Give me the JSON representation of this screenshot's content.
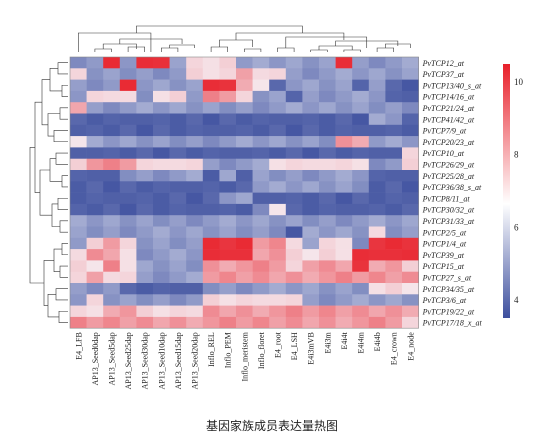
{
  "caption": "基因家族成员表达量热图",
  "chart_data": {
    "type": "heatmap",
    "title": "",
    "rows": [
      "PvTCP12_at",
      "PvTCP37_at",
      "PvTCP13/40_s_at",
      "PvTCP14/16_at",
      "PvTCP21/24_at",
      "PvTCP41/42_at",
      "PvTCP7/9_at",
      "PvTCP20/23_at",
      "PvTCP10_at",
      "PvTCP26/29_at",
      "PvTCP25/28_at",
      "PvTCP36/38_s_at",
      "PvTCP8/11_at",
      "PvTCP30/32_at",
      "PvTCP31/33_at",
      "PvTCP2/5_at",
      "PvTCP1/4_at",
      "PvTCP39_at",
      "PvTCP15_at",
      "PvTCP27_s_at",
      "PvTCP34/35_at",
      "PvTCP3/6_at",
      "PvTCP19/22_at",
      "PvTCP17/18_x_at"
    ],
    "columns": [
      "E4_LFB",
      "AP13_Seed0dap",
      "AP13_Seed5dap",
      "AP13_Seed25dap",
      "AP13_Seed30dap",
      "AP13_Seed10dap",
      "AP13_Seed15dap",
      "AP13_Seed20dap",
      "Inflo_REL",
      "Inflo_PEM",
      "Inflo_meristem",
      "Inflo_floret",
      "E4_root",
      "E4_LSH",
      "E4i3mVB",
      "E4i3m",
      "E4i4t",
      "E4i4m",
      "E4i4b",
      "E4_crown",
      "E4_node"
    ],
    "colorbar": {
      "ticks": [
        "10",
        "8",
        "6",
        "4"
      ],
      "range": [
        3.5,
        10.5
      ],
      "colors": [
        "#3d4f9e",
        "#ffffff",
        "#e8202a"
      ]
    }
  }
}
